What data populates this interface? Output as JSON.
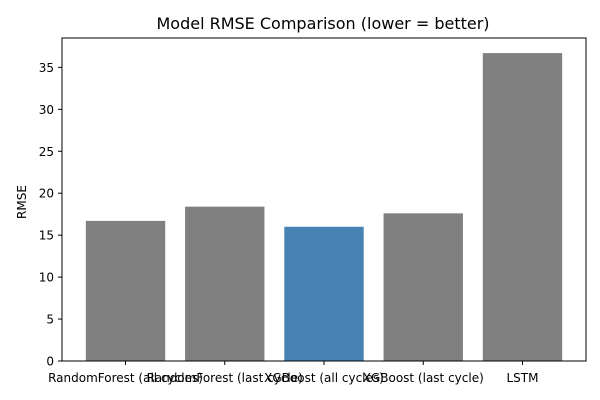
{
  "chart_data": {
    "type": "bar",
    "title": "Model RMSE Comparison (lower = better)",
    "xlabel": "",
    "ylabel": "RMSE",
    "categories": [
      "RandomForest (all cycles)",
      "RandomForest (last cycle)",
      "XGBoost (all cycles)",
      "XGBoost (last cycle)",
      "LSTM"
    ],
    "values": [
      16.7,
      18.4,
      16.0,
      17.6,
      36.7
    ],
    "colors": [
      "#808080",
      "#808080",
      "#4682b4",
      "#808080",
      "#808080"
    ],
    "highlight_color": "#4682b4",
    "default_color": "#808080",
    "ylim": [
      0,
      38.5
    ],
    "yticks": [
      0,
      5,
      10,
      15,
      20,
      25,
      30,
      35
    ],
    "grid": false,
    "legend": "none"
  }
}
